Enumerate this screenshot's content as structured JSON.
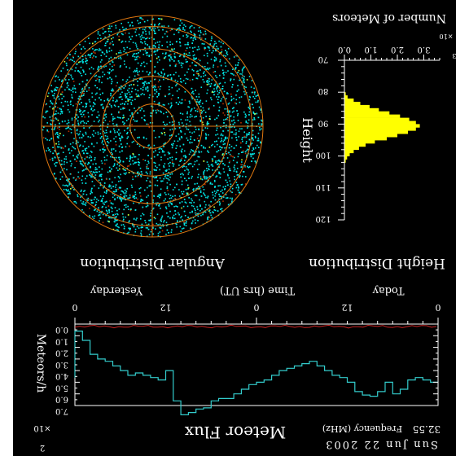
{
  "theme": {
    "background": "#000000",
    "foreground": "#ffffff",
    "histogram_fill": "#ffff00",
    "scatter_main": "#00e5e5",
    "scatter_secondary": "#b03000",
    "scatter_highlight": "#c8ff3c",
    "ring_color": "#e07810",
    "flux_color": "#33cccc",
    "baseline_color": "#cc2222"
  },
  "labels": {
    "angular_title": "Angular Distribution",
    "height_title": "Height Distribution",
    "hist_xlabel": "Number of Meteors",
    "hist_exponent": "×10",
    "hist_exponent_power": "3",
    "hist_ylabel": "Height",
    "flux_title": "Meteor Flux",
    "flux_ylabel": "Meteors/h",
    "flux_exponent": "×10",
    "flux_exponent_power": "2",
    "time_label": "Time (hrs UT)",
    "yesterday": "Yesterday",
    "today": "Today",
    "frequency_label": "Frequency (MHz)",
    "frequency_value": "32.55",
    "date": "Sun Jun 22 2003"
  },
  "chart_data": [
    {
      "type": "scatter",
      "title": "Angular Distribution",
      "xlabel": "",
      "ylabel": "",
      "grid": true,
      "rings": 5
    },
    {
      "type": "bar",
      "title": "Height Distribution",
      "orientation": "horizontal",
      "xlabel": "Number of Meteors",
      "ylabel": "Height",
      "x_ticks": [
        "0.0",
        "1.0",
        "2.0",
        "3.0"
      ],
      "xlim": [
        0,
        3.6
      ],
      "y_ticks": [
        "70",
        "80",
        "90",
        "100",
        "110",
        "120"
      ],
      "ylim": [
        70,
        120
      ],
      "bin_width": 1,
      "bin_start": [
        80,
        81,
        82,
        83,
        84,
        85,
        86,
        87,
        88,
        89,
        90,
        91,
        92,
        93,
        94,
        95,
        96,
        97,
        98,
        99,
        100,
        101
      ],
      "values": [
        0.05,
        0.12,
        0.35,
        0.6,
        0.95,
        1.3,
        1.7,
        2.1,
        2.45,
        2.7,
        2.85,
        2.7,
        2.4,
        2.0,
        1.6,
        1.15,
        0.8,
        0.55,
        0.35,
        0.2,
        0.1,
        0.05
      ]
    },
    {
      "type": "line",
      "title": "Meteor Flux",
      "xlabel": "Time (hrs UT)",
      "ylabel": "Meteors/h",
      "x_ticks": [
        "0",
        "12",
        "0",
        "12",
        "0"
      ],
      "xlim": [
        -24,
        0
      ],
      "y_ticks": [
        "0.0",
        "1.0",
        "2.0",
        "3.0",
        "4.0",
        "5.0",
        "6.0",
        "7.0"
      ],
      "ylim": [
        0,
        7
      ],
      "series": [
        {
          "name": "",
          "x": [
            -24,
            -23.5,
            -23,
            -22.5,
            -22,
            -21.5,
            -21,
            -20.5,
            -20,
            -19.5,
            -19,
            -18.5,
            -18,
            -17.5,
            -17,
            -16.5,
            -16,
            -15.5,
            -15,
            -14.5,
            -14,
            -13.5,
            -13,
            -12.5,
            -12,
            -11.5,
            -11,
            -10.5,
            -10,
            -9.5,
            -9,
            -8.5,
            -8,
            -7.5,
            -7,
            -6.5,
            -6,
            -5.5,
            -5,
            -4.5,
            -4,
            -3.5,
            -3,
            -2.5,
            -2,
            -1.5,
            -1,
            -0.5,
            0
          ],
          "values": [
            5.0,
            4.8,
            4.6,
            4.8,
            5.6,
            6.0,
            5.0,
            5.8,
            6.2,
            6.1,
            5.8,
            5.0,
            4.6,
            4.4,
            4.0,
            3.6,
            3.2,
            3.4,
            3.6,
            3.8,
            4.0,
            4.4,
            4.8,
            5.0,
            5.2,
            5.6,
            6.0,
            6.4,
            6.4,
            6.6,
            7.2,
            7.3,
            7.6,
            7.8,
            6.6,
            4.0,
            4.8,
            4.6,
            4.4,
            4.2,
            4.4,
            4.0,
            3.6,
            3.2,
            3.0,
            2.6,
            1.4,
            0.6,
            4.6
          ]
        }
      ]
    }
  ]
}
